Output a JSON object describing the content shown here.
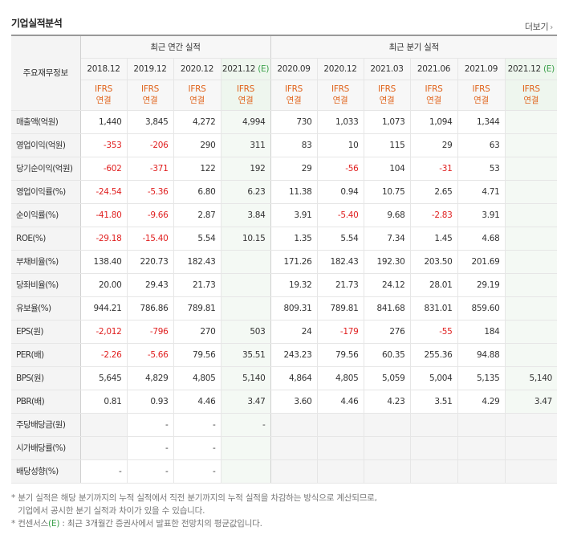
{
  "header": {
    "title": "기업실적분석",
    "more_label": "더보기",
    "more_arrow": "›"
  },
  "table": {
    "row_header_label": "주요재무정보",
    "groups": [
      "최근 연간 실적",
      "최근 분기 실적"
    ],
    "periods": [
      "2018.12",
      "2019.12",
      "2020.12",
      "2021.12",
      "2020.09",
      "2020.12",
      "2021.03",
      "2021.06",
      "2021.09",
      "2021.12"
    ],
    "estimate_mark": "(E)",
    "ifrs_line1": "IFRS",
    "ifrs_line2": "연결",
    "rows": [
      {
        "label": "매출액(억원)",
        "values": [
          "1,440",
          "3,845",
          "4,272",
          "4,994",
          "730",
          "1,033",
          "1,073",
          "1,094",
          "1,344",
          ""
        ]
      },
      {
        "label": "영업이익(억원)",
        "values": [
          "-353",
          "-206",
          "290",
          "311",
          "83",
          "10",
          "115",
          "29",
          "63",
          ""
        ]
      },
      {
        "label": "당기순이익(억원)",
        "values": [
          "-602",
          "-371",
          "122",
          "192",
          "29",
          "-56",
          "104",
          "-31",
          "53",
          ""
        ]
      },
      {
        "label": "영업이익률(%)",
        "values": [
          "-24.54",
          "-5.36",
          "6.80",
          "6.23",
          "11.38",
          "0.94",
          "10.75",
          "2.65",
          "4.71",
          ""
        ]
      },
      {
        "label": "순이익률(%)",
        "values": [
          "-41.80",
          "-9.66",
          "2.87",
          "3.84",
          "3.91",
          "-5.40",
          "9.68",
          "-2.83",
          "3.91",
          ""
        ]
      },
      {
        "label": "ROE(%)",
        "values": [
          "-29.18",
          "-15.40",
          "5.54",
          "10.15",
          "1.35",
          "5.54",
          "7.34",
          "1.45",
          "4.68",
          ""
        ]
      },
      {
        "label": "부채비율(%)",
        "values": [
          "138.40",
          "220.73",
          "182.43",
          "",
          "171.26",
          "182.43",
          "192.30",
          "203.50",
          "201.69",
          ""
        ]
      },
      {
        "label": "당좌비율(%)",
        "values": [
          "20.00",
          "29.43",
          "21.73",
          "",
          "19.32",
          "21.73",
          "24.12",
          "28.01",
          "29.19",
          ""
        ]
      },
      {
        "label": "유보율(%)",
        "values": [
          "944.21",
          "786.86",
          "789.81",
          "",
          "809.31",
          "789.81",
          "841.68",
          "831.01",
          "859.60",
          ""
        ]
      },
      {
        "label": "EPS(원)",
        "values": [
          "-2,012",
          "-796",
          "270",
          "503",
          "24",
          "-179",
          "276",
          "-55",
          "184",
          ""
        ]
      },
      {
        "label": "PER(배)",
        "values": [
          "-2.26",
          "-5.66",
          "79.56",
          "35.51",
          "243.23",
          "79.56",
          "60.35",
          "255.36",
          "94.88",
          ""
        ]
      },
      {
        "label": "BPS(원)",
        "values": [
          "5,645",
          "4,829",
          "4,805",
          "5,140",
          "4,864",
          "4,805",
          "5,059",
          "5,004",
          "5,135",
          "5,140"
        ]
      },
      {
        "label": "PBR(배)",
        "values": [
          "0.81",
          "0.93",
          "4.46",
          "3.47",
          "3.60",
          "4.46",
          "4.23",
          "3.51",
          "4.29",
          "3.47"
        ]
      },
      {
        "label": "주당배당금(원)",
        "values": [
          "",
          "-",
          "-",
          "-",
          "",
          "",
          "",
          "",
          "",
          ""
        ]
      },
      {
        "label": "시가배당률(%)",
        "values": [
          "",
          "-",
          "-",
          "",
          "",
          "",
          "",
          "",
          "",
          ""
        ]
      },
      {
        "label": "배당성향(%)",
        "values": [
          "-",
          "-",
          "-",
          "",
          "",
          "",
          "",
          "",
          "",
          ""
        ]
      }
    ]
  },
  "notes": {
    "line1": "* 분기 실적은 해당 분기까지의 누적 실적에서 직전 분기까지의 누적 실적을 차감하는 방식으로 계산되므로,",
    "line2": "기업에서 공시한 분기 실적과 차이가 있을 수 있습니다.",
    "line3_prefix": "* 컨센서스",
    "line3_mark": "(E)",
    "line3_suffix": ": 최근 3개월간 증권사에서 발표한 전망치의 평균값입니다."
  },
  "colors": {
    "negative": "#e02020",
    "ifrs": "#e0631b",
    "estimate": "#3aa04a"
  }
}
